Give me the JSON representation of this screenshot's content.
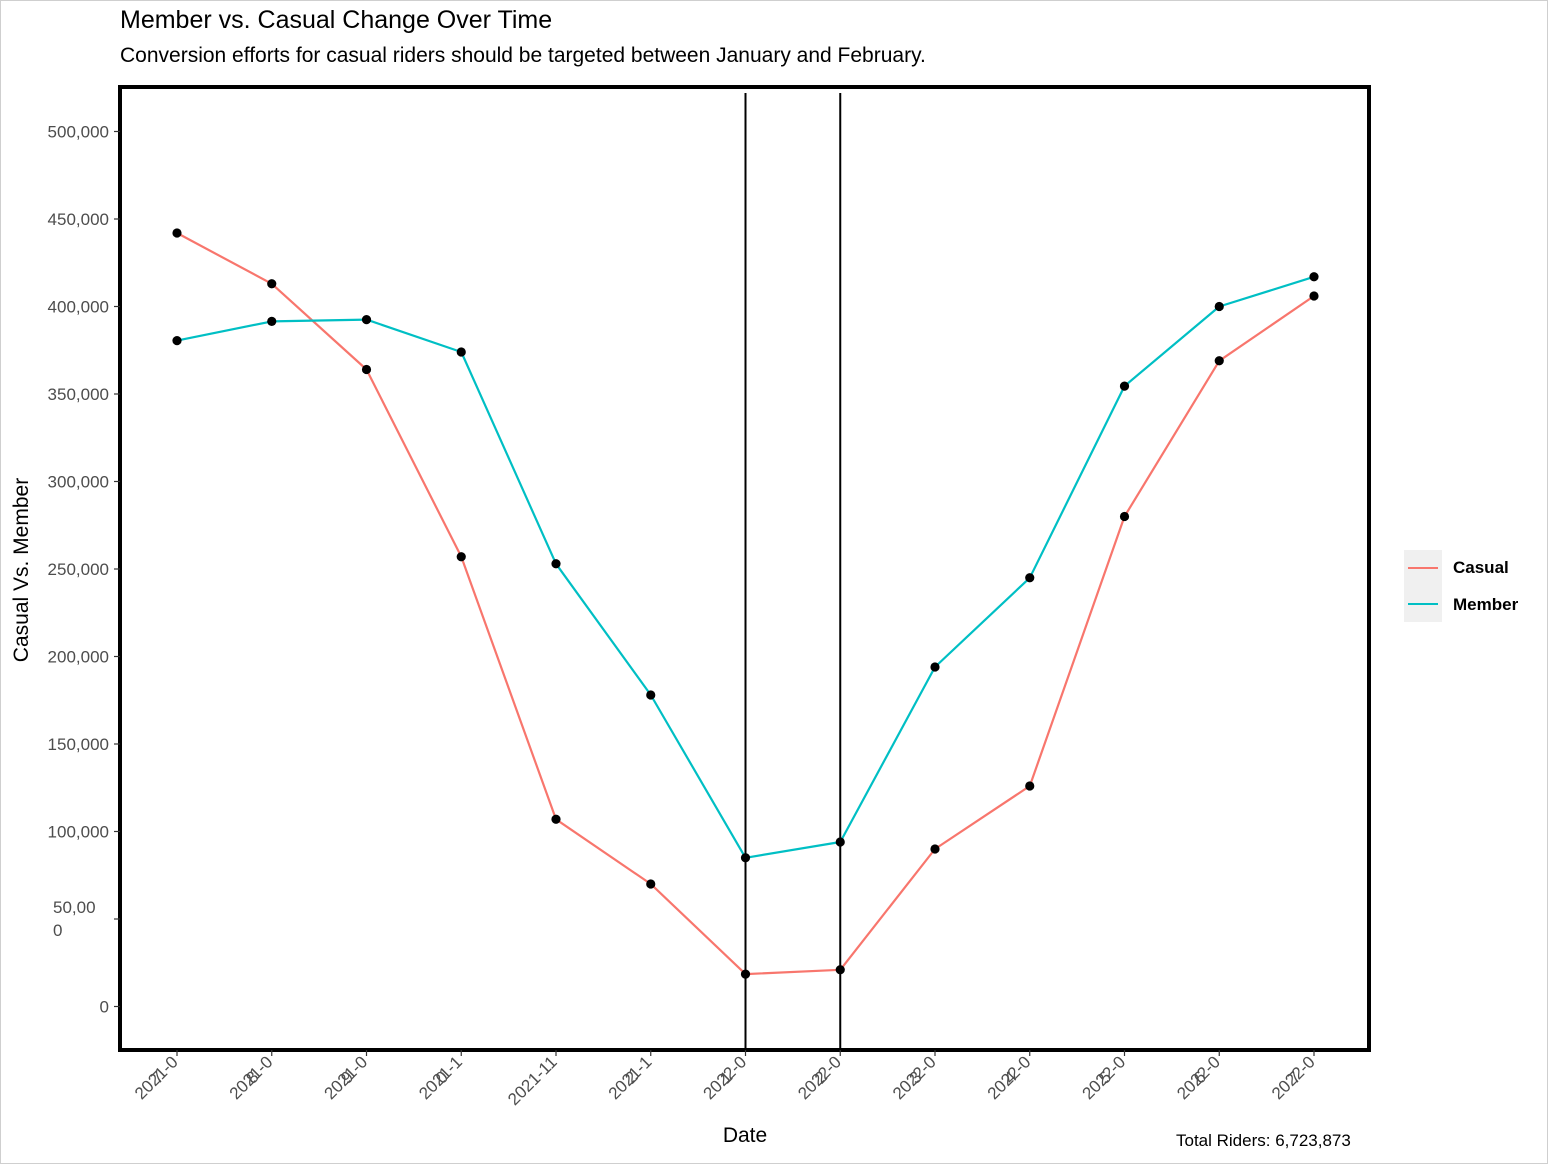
{
  "chart_data": {
    "type": "line",
    "title": "Member vs. Casual Change Over Time",
    "subtitle": "Conversion efforts for casual riders should be targeted between January and February.",
    "xlabel": "Date",
    "ylabel": "Casual Vs. Member",
    "caption": "Total Riders:  6,723,873",
    "categories": [
      [
        "2021-0",
        "7"
      ],
      [
        "2021-0",
        "8"
      ],
      [
        "2021-0",
        "9"
      ],
      [
        "2021-1",
        "0"
      ],
      [
        "2021-11",
        ""
      ],
      [
        "2021-1",
        "2"
      ],
      [
        "2022-0",
        "1"
      ],
      [
        "2022-0",
        "2"
      ],
      [
        "2022-0",
        "3"
      ],
      [
        "2022-0",
        "4"
      ],
      [
        "2022-0",
        "5"
      ],
      [
        "2022-0",
        "6"
      ],
      [
        "2022-0",
        "7"
      ]
    ],
    "ylim": [
      -25000,
      525000
    ],
    "yticks": [
      {
        "value": 500000,
        "lines": [
          "500,000"
        ]
      },
      {
        "value": 450000,
        "lines": [
          "450,000"
        ]
      },
      {
        "value": 400000,
        "lines": [
          "400,000"
        ]
      },
      {
        "value": 350000,
        "lines": [
          "350,000"
        ]
      },
      {
        "value": 300000,
        "lines": [
          "300,000"
        ]
      },
      {
        "value": 250000,
        "lines": [
          "250,000"
        ]
      },
      {
        "value": 200000,
        "lines": [
          "200,000"
        ]
      },
      {
        "value": 150000,
        "lines": [
          "150,000"
        ]
      },
      {
        "value": 100000,
        "lines": [
          "100,000"
        ]
      },
      {
        "value": 50000,
        "lines": [
          "50,00",
          "0"
        ]
      },
      {
        "value": 0,
        "lines": [
          "0"
        ]
      }
    ],
    "vlines_at_category": [
      6,
      7
    ],
    "grid": false,
    "legend_position": "right",
    "series": [
      {
        "name": "Casual",
        "color": "#F8766D",
        "values": [
          442000,
          413000,
          364000,
          257000,
          107000,
          70000,
          18500,
          21000,
          90000,
          126000,
          280000,
          369000,
          406000
        ]
      },
      {
        "name": "Member",
        "color": "#00BFC4",
        "values": [
          380500,
          391500,
          392500,
          374000,
          253000,
          178000,
          85000,
          94000,
          194000,
          245000,
          354500,
          400000,
          417000
        ]
      }
    ]
  }
}
